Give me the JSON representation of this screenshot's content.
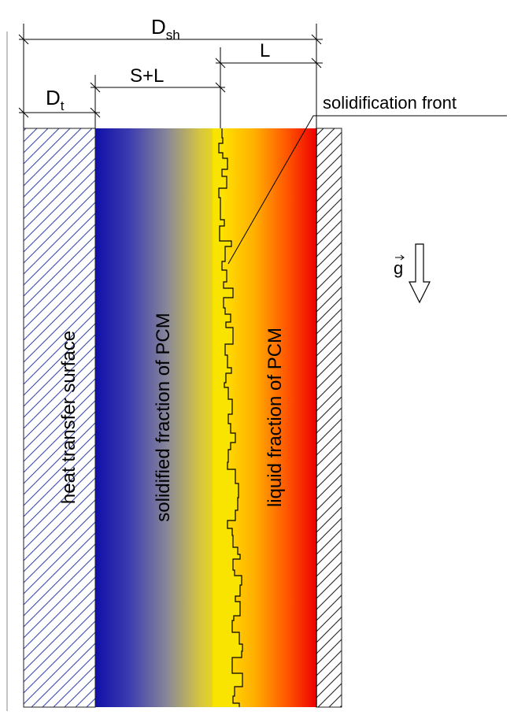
{
  "dimensions": {
    "d_sh": {
      "main": "D",
      "sub": "sh"
    },
    "d_t": {
      "main": "D",
      "sub": "t"
    },
    "s_plus_l": "S+L",
    "l": "L"
  },
  "labels": {
    "solidification_front": "solidification front",
    "heat_transfer_surface": "heat transfer surface",
    "solidified_fraction": "solidified fraction of PCM",
    "liquid_fraction": "liquid fraction of PCM",
    "gravity": "g"
  },
  "colors": {
    "solid_start": "#1a1aa0",
    "solid_end": "#f5e000",
    "liquid_start": "#ffe000",
    "liquid_mid": "#ff7a00",
    "liquid_end": "#ee0000",
    "hatch_left": "#3a4aa8",
    "hatch_right": "#222222"
  }
}
